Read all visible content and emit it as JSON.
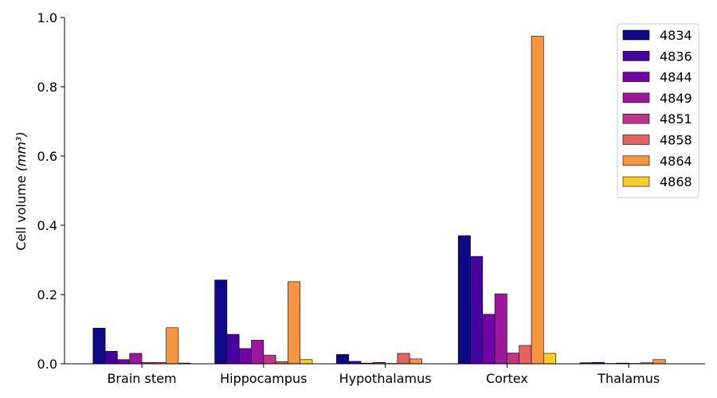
{
  "chart_data": {
    "type": "bar",
    "title": "",
    "xlabel": "",
    "ylabel": "Cell volume",
    "ylabel_unit": "(mm³)",
    "ylim": [
      0,
      1.0
    ],
    "yticks": [
      "0.0",
      "0.2",
      "0.4",
      "0.6",
      "0.8",
      "1.0"
    ],
    "legend_position": "top-right",
    "grid": false,
    "categories": [
      "Brain stem",
      "Hippocampus",
      "Hypothalamus",
      "Cortex",
      "Thalamus"
    ],
    "series": [
      {
        "name": "4834",
        "color": "#0d0887",
        "values": [
          0.103,
          0.242,
          0.027,
          0.37,
          0.003
        ]
      },
      {
        "name": "4836",
        "color": "#46039f",
        "values": [
          0.036,
          0.085,
          0.007,
          0.31,
          0.004
        ]
      },
      {
        "name": "4844",
        "color": "#7201a8",
        "values": [
          0.012,
          0.044,
          0.002,
          0.143,
          0.001
        ]
      },
      {
        "name": "4849",
        "color": "#9c179e",
        "values": [
          0.03,
          0.068,
          0.004,
          0.202,
          0.002
        ]
      },
      {
        "name": "4851",
        "color": "#bd3786",
        "values": [
          0.004,
          0.025,
          0.001,
          0.031,
          0.001
        ]
      },
      {
        "name": "4858",
        "color": "#e16462",
        "values": [
          0.004,
          0.006,
          0.03,
          0.053,
          0.003
        ]
      },
      {
        "name": "4864",
        "color": "#f89540",
        "values": [
          0.104,
          0.237,
          0.014,
          0.946,
          0.012
        ]
      },
      {
        "name": "4868",
        "color": "#fccd25",
        "values": [
          0.002,
          0.012,
          0.0,
          0.03,
          0.0
        ]
      }
    ]
  }
}
